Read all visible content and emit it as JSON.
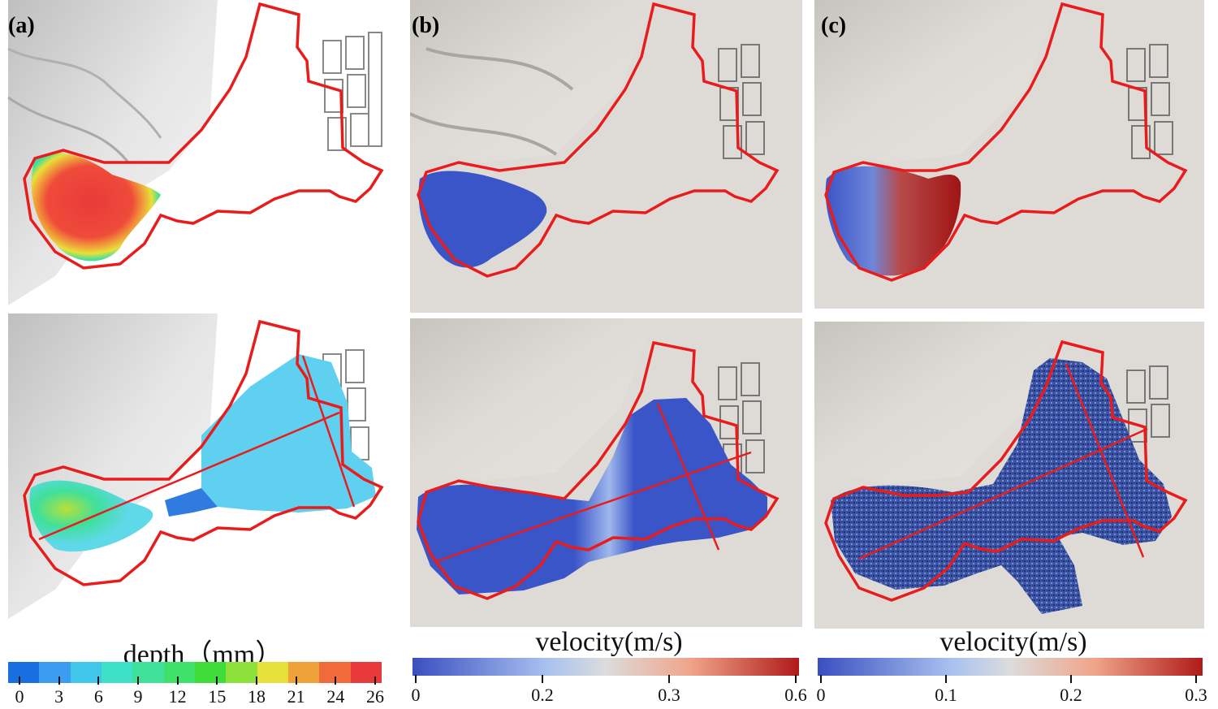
{
  "panels": {
    "a": {
      "label": "(a)"
    },
    "b": {
      "label": "(b)"
    },
    "c": {
      "label": "(c)"
    }
  },
  "colorbars": {
    "depth": {
      "title": "depth（mm）",
      "ticks": [
        "0",
        "3",
        "6",
        "9",
        "12",
        "15",
        "18",
        "21",
        "24",
        "26"
      ],
      "colors": [
        "#1a6fe0",
        "#3b9cf0",
        "#3fc6e8",
        "#3fe0c8",
        "#3fe09a",
        "#3fe06a",
        "#3fdc3a",
        "#8ee03a",
        "#e8e03a",
        "#f0a23a",
        "#f06a3a",
        "#e83a3a"
      ]
    },
    "velocity_b": {
      "title": "velocity(m/s)",
      "ticks": [
        "0",
        "0.2",
        "0.3",
        "0.6"
      ]
    },
    "velocity_c": {
      "title": "velocity(m/s)",
      "ticks": [
        "0",
        "0.1",
        "0.2",
        "0.3"
      ]
    }
  },
  "colors": {
    "boundary": "#e81c1c",
    "terrain": "#dcdcdc",
    "low_velocity": "#3a55c8",
    "high_velocity": "#b01a1a"
  }
}
